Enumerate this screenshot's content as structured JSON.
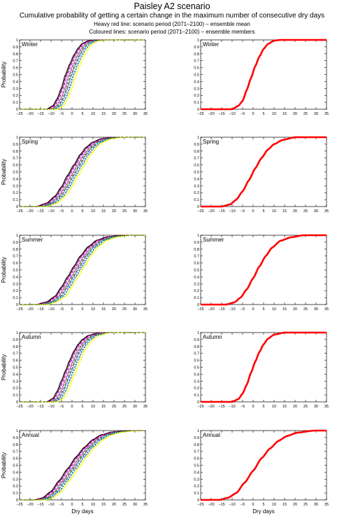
{
  "title": "Paisley A2 scenario",
  "subtitle": "Cumulative probability of getting a certain change in the maximum number of consecutive dry days",
  "notes": [
    "Heavy red line: scenario period (2071–2100) – ensemble mean",
    "Coloured lines: scenario period (2071–2100) – ensemble members"
  ],
  "axes": {
    "ylabel": "Probability",
    "xlabel": "Dry days",
    "xticks": [
      -25,
      -20,
      -15,
      -10,
      -5,
      0,
      5,
      10,
      15,
      20,
      25,
      30,
      35
    ],
    "yticks": [
      "0",
      "0.1",
      "0.2",
      "0.3",
      "0.4",
      "0.5",
      "0.6",
      "0.7",
      "0.8",
      "0.9",
      "1"
    ]
  },
  "colors": {
    "mean": "#ff0000",
    "members": [
      "#000000",
      "#2a00aa",
      "#7a0090",
      "#ff00ff",
      "#00cc00",
      "#cc0000",
      "#00bbbb",
      "#0000ff",
      "#ffff00",
      "#800000",
      "#008000"
    ]
  },
  "chart_data": [
    {
      "type": "line",
      "season": "Winter",
      "xlim": [
        -25,
        35
      ],
      "ylim": [
        0,
        1
      ],
      "series": [
        {
          "role": "members",
          "values": [
            [
              -10,
              0
            ],
            [
              -7,
              0.05
            ],
            [
              -5,
              0.15
            ],
            [
              -3,
              0.3
            ],
            [
              -1,
              0.5
            ],
            [
              1,
              0.65
            ],
            [
              3,
              0.78
            ],
            [
              5,
              0.88
            ],
            [
              7,
              0.95
            ],
            [
              10,
              0.99
            ],
            [
              14,
              1
            ]
          ]
        },
        {
          "role": "mean",
          "values": [
            [
              -10,
              0
            ],
            [
              -7,
              0.05
            ],
            [
              -5,
              0.12
            ],
            [
              -3,
              0.28
            ],
            [
              -1,
              0.45
            ],
            [
              1,
              0.62
            ],
            [
              3,
              0.76
            ],
            [
              5,
              0.87
            ],
            [
              7,
              0.94
            ],
            [
              10,
              0.99
            ],
            [
              13,
              1
            ]
          ]
        }
      ]
    },
    {
      "type": "line",
      "season": "Spring",
      "xlim": [
        -25,
        35
      ],
      "ylim": [
        0,
        1
      ],
      "series": [
        {
          "role": "members",
          "values": [
            [
              -15,
              0
            ],
            [
              -10,
              0.05
            ],
            [
              -6,
              0.15
            ],
            [
              -3,
              0.28
            ],
            [
              0,
              0.45
            ],
            [
              3,
              0.6
            ],
            [
              6,
              0.75
            ],
            [
              9,
              0.86
            ],
            [
              12,
              0.93
            ],
            [
              16,
              0.98
            ],
            [
              21,
              1
            ]
          ]
        },
        {
          "role": "mean",
          "values": [
            [
              -15,
              0
            ],
            [
              -11,
              0.03
            ],
            [
              -8,
              0.1
            ],
            [
              -5,
              0.22
            ],
            [
              -2,
              0.38
            ],
            [
              1,
              0.55
            ],
            [
              4,
              0.7
            ],
            [
              7,
              0.82
            ],
            [
              10,
              0.9
            ],
            [
              14,
              0.96
            ],
            [
              20,
              1
            ]
          ]
        }
      ]
    },
    {
      "type": "line",
      "season": "Summer",
      "xlim": [
        -25,
        35
      ],
      "ylim": [
        0,
        1
      ],
      "series": [
        {
          "role": "members",
          "values": [
            [
              -15,
              0
            ],
            [
              -10,
              0.04
            ],
            [
              -6,
              0.12
            ],
            [
              -3,
              0.25
            ],
            [
              0,
              0.4
            ],
            [
              3,
              0.55
            ],
            [
              6,
              0.7
            ],
            [
              10,
              0.84
            ],
            [
              14,
              0.93
            ],
            [
              19,
              0.98
            ],
            [
              26,
              1
            ]
          ]
        },
        {
          "role": "mean",
          "values": [
            [
              -13,
              0
            ],
            [
              -9,
              0.03
            ],
            [
              -6,
              0.1
            ],
            [
              -3,
              0.22
            ],
            [
              0,
              0.38
            ],
            [
              3,
              0.55
            ],
            [
              6,
              0.7
            ],
            [
              9,
              0.82
            ],
            [
              13,
              0.92
            ],
            [
              18,
              0.97
            ],
            [
              24,
              1
            ]
          ]
        }
      ]
    },
    {
      "type": "line",
      "season": "Autumn",
      "xlim": [
        -25,
        35
      ],
      "ylim": [
        0,
        1
      ],
      "series": [
        {
          "role": "members",
          "values": [
            [
              -10,
              0
            ],
            [
              -7,
              0.05
            ],
            [
              -5,
              0.15
            ],
            [
              -3,
              0.3
            ],
            [
              -1,
              0.45
            ],
            [
              1,
              0.6
            ],
            [
              3,
              0.73
            ],
            [
              5,
              0.83
            ],
            [
              7,
              0.9
            ],
            [
              10,
              0.96
            ],
            [
              15,
              1
            ]
          ]
        },
        {
          "role": "mean",
          "values": [
            [
              -10,
              0
            ],
            [
              -7,
              0.04
            ],
            [
              -5,
              0.12
            ],
            [
              -3,
              0.25
            ],
            [
              -1,
              0.42
            ],
            [
              1,
              0.58
            ],
            [
              3,
              0.72
            ],
            [
              5,
              0.83
            ],
            [
              7,
              0.91
            ],
            [
              10,
              0.97
            ],
            [
              15,
              1
            ]
          ]
        }
      ]
    },
    {
      "type": "line",
      "season": "Annual",
      "xlim": [
        -25,
        35
      ],
      "ylim": [
        0,
        1
      ],
      "series": [
        {
          "role": "members",
          "values": [
            [
              -16,
              0
            ],
            [
              -12,
              0.03
            ],
            [
              -8,
              0.12
            ],
            [
              -4,
              0.28
            ],
            [
              0,
              0.45
            ],
            [
              4,
              0.62
            ],
            [
              8,
              0.76
            ],
            [
              12,
              0.87
            ],
            [
              16,
              0.94
            ],
            [
              21,
              0.98
            ],
            [
              28,
              1
            ]
          ]
        },
        {
          "role": "mean",
          "values": [
            [
              -16,
              0
            ],
            [
              -12,
              0.03
            ],
            [
              -8,
              0.1
            ],
            [
              -4,
              0.25
            ],
            [
              0,
              0.42
            ],
            [
              4,
              0.6
            ],
            [
              8,
              0.74
            ],
            [
              12,
              0.85
            ],
            [
              16,
              0.92
            ],
            [
              21,
              0.97
            ],
            [
              29,
              1
            ]
          ]
        }
      ]
    }
  ]
}
